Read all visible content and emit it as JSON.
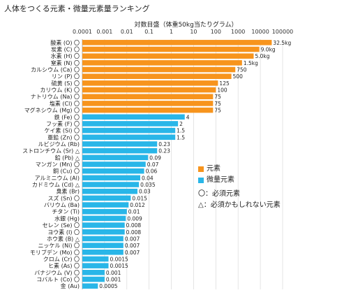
{
  "chart_data": {
    "type": "bar",
    "orientation": "horizontal",
    "title": "人体をつくる元素・微量元素量ランキング",
    "xlabel": "対数目盛（体重50kg当たりグラム）",
    "xscale": "log",
    "xlim": [
      0.0001,
      100000
    ],
    "xticks": [
      "0.0001",
      "0.001",
      "0.01",
      "0.1",
      "1",
      "10",
      "100",
      "1000",
      "10000",
      "100000"
    ],
    "grid": true,
    "legend_position": "right-middle",
    "colors": {
      "元素": "#f7941d",
      "微量元素": "#29b6e8"
    },
    "series": [
      {
        "name": "元素",
        "color": "#f7941d"
      },
      {
        "name": "微量元素",
        "color": "#29b6e8"
      }
    ],
    "legend_notes": [
      "〇：必須元素",
      "△：必須かもしれない元素"
    ],
    "bars": [
      {
        "label": "酸素 (O) 〇",
        "value": 32500,
        "value_label": "32.5kg",
        "group": "元素"
      },
      {
        "label": "炭素 (C) 〇",
        "value": 9000,
        "value_label": "9.0kg",
        "group": "元素"
      },
      {
        "label": "水素 (H) 〇",
        "value": 5000,
        "value_label": "5.0kg",
        "group": "元素"
      },
      {
        "label": "窒素 (N) 〇",
        "value": 1500,
        "value_label": "1.5kg",
        "group": "元素"
      },
      {
        "label": "カルシウム (Ca) 〇",
        "value": 750,
        "value_label": "750",
        "group": "元素"
      },
      {
        "label": "リン (P) 〇",
        "value": 500,
        "value_label": "500",
        "group": "元素"
      },
      {
        "label": "硫黄 (S) 〇",
        "value": 125,
        "value_label": "125",
        "group": "元素"
      },
      {
        "label": "カリウム (K) 〇",
        "value": 100,
        "value_label": "100",
        "group": "元素"
      },
      {
        "label": "ナトリウム (Na) 〇",
        "value": 75,
        "value_label": "75",
        "group": "元素"
      },
      {
        "label": "塩素 (Cl) 〇",
        "value": 75,
        "value_label": "75",
        "group": "元素"
      },
      {
        "label": "マグネシウム (Mg) 〇",
        "value": 75,
        "value_label": "75",
        "group": "元素"
      },
      {
        "label": "鉄 (Fe) 〇",
        "value": 4,
        "value_label": "4",
        "group": "微量元素"
      },
      {
        "label": "フッ素 (F) 〇",
        "value": 2,
        "value_label": "2",
        "group": "微量元素"
      },
      {
        "label": "ケイ素 (Si) 〇",
        "value": 1.5,
        "value_label": "1.5",
        "group": "微量元素"
      },
      {
        "label": "亜鉛 (Zn) 〇",
        "value": 1.5,
        "value_label": "1.5",
        "group": "微量元素"
      },
      {
        "label": "ルビジウム (Rb)",
        "value": 0.23,
        "value_label": "0.23",
        "group": "微量元素"
      },
      {
        "label": "ストロンチウム (Sr) △",
        "value": 0.23,
        "value_label": "0.23",
        "group": "微量元素"
      },
      {
        "label": "鉛 (Pb) △",
        "value": 0.09,
        "value_label": "0.09",
        "group": "微量元素"
      },
      {
        "label": "マンガン (Mn) 〇",
        "value": 0.07,
        "value_label": "0.07",
        "group": "微量元素"
      },
      {
        "label": "銅 (Cu) 〇",
        "value": 0.06,
        "value_label": "0.06",
        "group": "微量元素"
      },
      {
        "label": "アルミニウム (Al)",
        "value": 0.04,
        "value_label": "0.04",
        "group": "微量元素"
      },
      {
        "label": "カドミウム (Cd) △",
        "value": 0.035,
        "value_label": "0.035",
        "group": "微量元素"
      },
      {
        "label": "臭素 (Br)",
        "value": 0.03,
        "value_label": "0.03",
        "group": "微量元素"
      },
      {
        "label": "スズ (Sn) 〇",
        "value": 0.015,
        "value_label": "0.015",
        "group": "微量元素"
      },
      {
        "label": "バリウム (Ba)",
        "value": 0.012,
        "value_label": "0.012",
        "group": "微量元素"
      },
      {
        "label": "チタン (Ti)",
        "value": 0.01,
        "value_label": "0.01",
        "group": "微量元素"
      },
      {
        "label": "水銀 (Hg)",
        "value": 0.009,
        "value_label": "0.009",
        "group": "微量元素"
      },
      {
        "label": "セレン (Se) 〇",
        "value": 0.008,
        "value_label": "0.008",
        "group": "微量元素"
      },
      {
        "label": "ヨウ素 (I) 〇",
        "value": 0.008,
        "value_label": "0.008",
        "group": "微量元素"
      },
      {
        "label": "ホウ素 (B) △",
        "value": 0.007,
        "value_label": "0.007",
        "group": "微量元素"
      },
      {
        "label": "ニッケル (Ni) 〇",
        "value": 0.007,
        "value_label": "0.007",
        "group": "微量元素"
      },
      {
        "label": "モリブデン (Mo) 〇",
        "value": 0.007,
        "value_label": "0.007",
        "group": "微量元素"
      },
      {
        "label": "クロム (Cr) 〇",
        "value": 0.0015,
        "value_label": "0.0015",
        "group": "微量元素"
      },
      {
        "label": "ヒ素 (As) 〇",
        "value": 0.0015,
        "value_label": "0.0015",
        "group": "微量元素"
      },
      {
        "label": "バナジウム (V) 〇",
        "value": 0.001,
        "value_label": "0.001",
        "group": "微量元素"
      },
      {
        "label": "コバルト (Co) 〇",
        "value": 0.001,
        "value_label": "0.001",
        "group": "微量元素"
      },
      {
        "label": "金 (Au)",
        "value": 0.0005,
        "value_label": "0.0005",
        "group": "微量元素"
      }
    ]
  }
}
